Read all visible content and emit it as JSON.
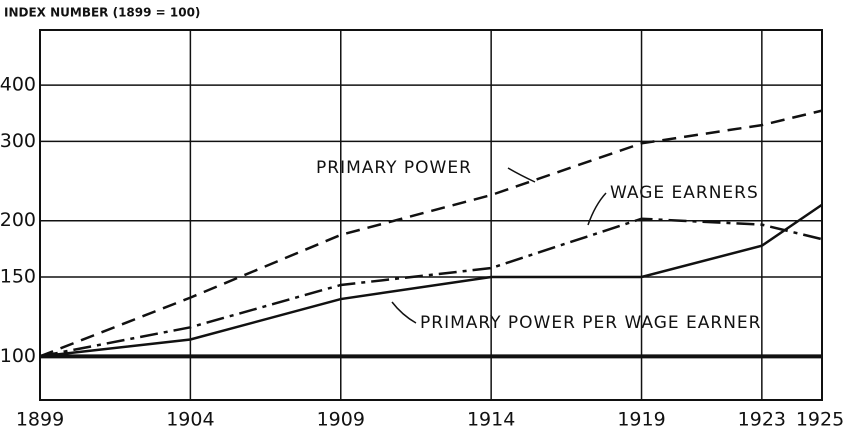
{
  "chart_data": {
    "type": "line",
    "ylabel": "INDEX NUMBER (1899 = 100)",
    "x": [
      1899,
      1904,
      1909,
      1914,
      1919,
      1923,
      1925
    ],
    "xlim": [
      1899,
      1925
    ],
    "xticks": [
      1899,
      1904,
      1909,
      1914,
      1919,
      1923,
      1925
    ],
    "ylim": [
      80,
      530
    ],
    "yticks": [
      100,
      150,
      200,
      300,
      400
    ],
    "log_y": true,
    "grid": true,
    "reference_line": 100,
    "series": [
      {
        "name": "PRIMARY POWER",
        "color": "#111111",
        "dash": "dashed",
        "values": [
          100,
          135,
          186,
          228,
          297,
          326,
          351
        ]
      },
      {
        "name": "WAGE EARNERS",
        "color": "#111111",
        "dash": "dashdot",
        "values": [
          100,
          116,
          144,
          157,
          202,
          196,
          182
        ]
      },
      {
        "name": "PRIMARY POWER PER WAGE EARNER",
        "color": "#111111",
        "dash": "solid",
        "values": [
          100,
          109,
          134,
          150,
          150,
          176,
          217
        ]
      }
    ]
  }
}
